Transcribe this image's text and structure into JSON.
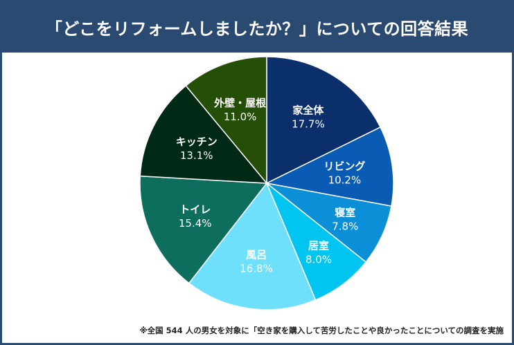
{
  "header": {
    "title": "「どこをリフォームしましたか？」についての回答結果"
  },
  "chart_data": {
    "type": "pie",
    "title": "「どこをリフォームしましたか？」についての回答結果",
    "unit": "%",
    "slices": [
      {
        "label": "家全体",
        "value": 17.7,
        "display": "17.7%",
        "color": "#0b2f6b"
      },
      {
        "label": "リビング",
        "value": 10.2,
        "display": "10.2%",
        "color": "#0a5bb3"
      },
      {
        "label": "寝室",
        "value": 7.8,
        "display": "7.8%",
        "color": "#0b8fd6"
      },
      {
        "label": "居室",
        "value": 8.0,
        "display": "8.0%",
        "color": "#00c5f0"
      },
      {
        "label": "風呂",
        "value": 16.8,
        "display": "16.8%",
        "color": "#6fe0fb"
      },
      {
        "label": "トイレ",
        "value": 15.4,
        "display": "15.4%",
        "color": "#0d6e5e"
      },
      {
        "label": "キッチン",
        "value": 13.1,
        "display": "13.1%",
        "color": "#002a16"
      },
      {
        "label": "外壁・屋根",
        "value": 11.0,
        "display": "11.0%",
        "color": "#254f07"
      }
    ]
  },
  "footnote": "※全国 544 人の男女を対象に「空き家を購入して苦労したことや良かったことについての調査を実施"
}
